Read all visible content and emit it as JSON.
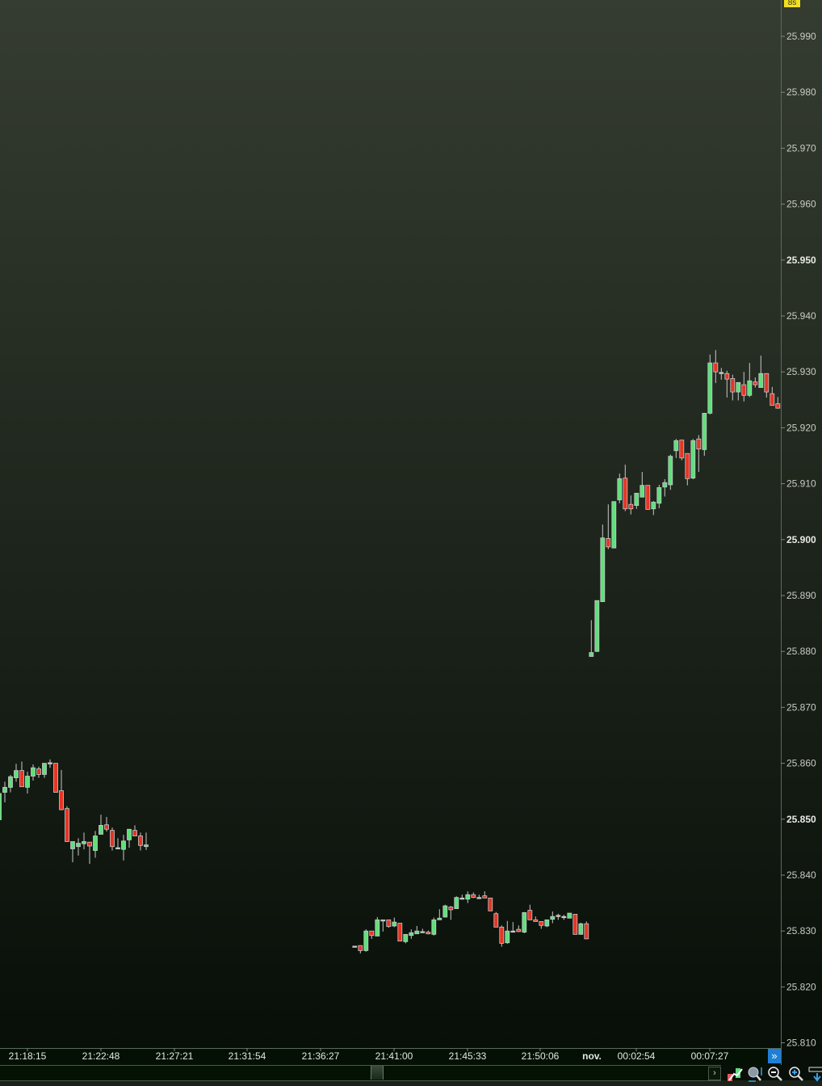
{
  "badge": "8s",
  "colors": {
    "up": "#5ee07a",
    "down": "#e43524",
    "outline": "#c8c8c8",
    "bg_top": "#353c31",
    "bg_bottom": "#070f08",
    "accent": "#1e7fd8"
  },
  "scroll_end_icon": "double-chevron-right-icon",
  "toolbar_icons": [
    "candle-bar-toggle-icon",
    "zoom-fit-icon",
    "zoom-out-icon",
    "zoom-in-icon",
    "scroll-to-end-icon"
  ],
  "chart_data": {
    "type": "candlestick",
    "ylim": [
      25.809,
      25.994
    ],
    "grid": false,
    "price_ticks": [
      "25.990",
      "25.980",
      "25.970",
      "25.960",
      "25.950",
      "25.940",
      "25.930",
      "25.920",
      "25.910",
      "25.900",
      "25.890",
      "25.880",
      "25.870",
      "25.860",
      "25.850",
      "25.840",
      "25.830",
      "25.820",
      "25.810"
    ],
    "bold_ticks": [
      "25.950",
      "25.900",
      "25.850"
    ],
    "time_ticks": [
      "21:18:15",
      "21:22:48",
      "21:27:21",
      "21:31:54",
      "21:36:27",
      "21:41:00",
      "21:45:33",
      "21:50:06",
      "nov.",
      "00:02:54",
      "00:07:27"
    ],
    "segments": [
      [
        [
          25.8499,
          25.8549,
          25.8499,
          25.8546
        ],
        [
          25.8548,
          25.8567,
          25.853,
          25.8557
        ],
        [
          25.8557,
          25.8579,
          25.8548,
          25.8576
        ],
        [
          25.8574,
          25.8599,
          25.8567,
          25.8587
        ],
        [
          25.8587,
          25.8603,
          25.8558,
          25.8558
        ],
        [
          25.8557,
          25.8585,
          25.8546,
          25.8577
        ],
        [
          25.8577,
          25.8598,
          25.8569,
          25.8592
        ],
        [
          25.859,
          25.8594,
          25.8574,
          25.858
        ],
        [
          25.858,
          25.86,
          25.8574,
          25.86
        ],
        [
          25.8601,
          25.8607,
          25.8592,
          25.8601
        ],
        [
          25.86,
          25.86,
          25.8548,
          25.8548
        ],
        [
          25.8551,
          25.8588,
          25.8516,
          25.8517
        ],
        [
          25.8519,
          25.8523,
          25.846,
          25.846
        ],
        [
          25.8447,
          25.846,
          25.8423,
          25.846
        ],
        [
          25.8451,
          25.8466,
          25.8435,
          25.8457
        ],
        [
          25.8456,
          25.8476,
          25.8446,
          25.846
        ],
        [
          25.8459,
          25.8459,
          25.842,
          25.8452
        ],
        [
          25.8444,
          25.8479,
          25.8431,
          25.847
        ],
        [
          25.8473,
          25.8508,
          25.8473,
          25.8489
        ],
        [
          25.849,
          25.8504,
          25.8478,
          25.8482
        ],
        [
          25.848,
          25.8485,
          25.8444,
          25.8451
        ],
        [
          25.8449,
          25.8466,
          25.8446,
          25.8449
        ],
        [
          25.8446,
          25.8472,
          25.8426,
          25.8461
        ],
        [
          25.8463,
          25.8482,
          25.8449,
          25.8482
        ],
        [
          25.848,
          25.8489,
          25.847,
          25.847
        ],
        [
          25.847,
          25.8476,
          25.8444,
          25.8453
        ],
        [
          25.8451,
          25.8476,
          25.8445,
          25.8454
        ]
      ],
      [
        [
          25.8273,
          25.8273,
          25.8273,
          25.8273
        ],
        [
          25.8274,
          25.8274,
          25.826,
          25.8265
        ],
        [
          25.8265,
          25.8303,
          25.8263,
          25.83
        ],
        [
          25.83,
          25.83,
          25.8286,
          25.8292
        ],
        [
          25.8291,
          25.8325,
          25.8291,
          25.832
        ],
        [
          25.832,
          25.832,
          25.8299,
          25.832
        ],
        [
          25.832,
          25.832,
          25.8306,
          25.8308
        ],
        [
          25.8309,
          25.8324,
          25.8307,
          25.8316
        ],
        [
          25.8314,
          25.8314,
          25.8282,
          25.8282
        ],
        [
          25.8281,
          25.8294,
          25.8278,
          25.8294
        ],
        [
          25.8292,
          25.8303,
          25.8286,
          25.8297
        ],
        [
          25.8295,
          25.8309,
          25.8295,
          25.83
        ],
        [
          25.8299,
          25.8304,
          25.8297,
          25.8299
        ],
        [
          25.8298,
          25.8301,
          25.8294,
          25.8295
        ],
        [
          25.8294,
          25.8324,
          25.8292,
          25.832
        ],
        [
          25.832,
          25.8339,
          25.832,
          25.8323
        ],
        [
          25.8325,
          25.8347,
          25.8324,
          25.8345
        ],
        [
          25.8343,
          25.8345,
          25.832,
          25.8338
        ],
        [
          25.834,
          25.8362,
          25.834,
          25.836
        ],
        [
          25.8359,
          25.8365,
          25.8358,
          25.8359
        ],
        [
          25.8357,
          25.8371,
          25.835,
          25.8365
        ],
        [
          25.8365,
          25.8369,
          25.8359,
          25.836
        ],
        [
          25.836,
          25.8365,
          25.8359,
          25.836
        ],
        [
          25.8363,
          25.8371,
          25.8359,
          25.8359
        ],
        [
          25.8359,
          25.8359,
          25.8336,
          25.8336
        ],
        [
          25.8331,
          25.8334,
          25.8307,
          25.8307
        ],
        [
          25.8307,
          25.831,
          25.8272,
          25.8278
        ],
        [
          25.8279,
          25.8318,
          25.8277,
          25.83
        ],
        [
          25.83,
          25.8316,
          25.8299,
          25.83
        ],
        [
          25.8303,
          25.831,
          25.8298,
          25.8299
        ],
        [
          25.8298,
          25.8334,
          25.8296,
          25.8333
        ],
        [
          25.8337,
          25.8347,
          25.832,
          25.832
        ],
        [
          25.832,
          25.8326,
          25.8317,
          25.8317
        ],
        [
          25.8317,
          25.8317,
          25.8304,
          25.831
        ],
        [
          25.8309,
          25.832,
          25.8307,
          25.832
        ],
        [
          25.8321,
          25.8335,
          25.8314,
          25.8326
        ],
        [
          25.8328,
          25.8331,
          25.832,
          25.8328
        ],
        [
          25.8326,
          25.8329,
          25.832,
          25.8326
        ],
        [
          25.8323,
          25.8332,
          25.8323,
          25.8332
        ],
        [
          25.833,
          25.833,
          25.8294,
          25.8294
        ],
        [
          25.8294,
          25.8315,
          25.8294,
          25.8313
        ],
        [
          25.8313,
          25.8317,
          25.8286,
          25.8286
        ]
      ],
      [
        [
          25.8791,
          25.8856,
          25.8791,
          25.8798
        ],
        [
          25.88,
          25.8891,
          25.8799,
          25.8891
        ],
        [
          25.8889,
          25.9027,
          25.8889,
          25.9003
        ],
        [
          25.9002,
          25.9063,
          25.8983,
          25.8987
        ],
        [
          25.8985,
          25.9068,
          25.8985,
          25.9068
        ],
        [
          25.9071,
          25.9118,
          25.9065,
          25.9109
        ],
        [
          25.911,
          25.9134,
          25.9051,
          25.9055
        ],
        [
          25.9063,
          25.9079,
          25.9045,
          25.9055
        ],
        [
          25.9061,
          25.9083,
          25.9055,
          25.9083
        ],
        [
          25.9076,
          25.9121,
          25.9076,
          25.9097
        ],
        [
          25.9097,
          25.9097,
          25.9054,
          25.9054
        ],
        [
          25.9055,
          25.9069,
          25.9044,
          25.9067
        ],
        [
          25.9065,
          25.9098,
          25.9056,
          25.9093
        ],
        [
          25.9094,
          25.9108,
          25.9077,
          25.9102
        ],
        [
          25.9098,
          25.9152,
          25.9089,
          25.9149
        ],
        [
          25.9159,
          25.918,
          25.9146,
          25.9177
        ],
        [
          25.9178,
          25.9178,
          25.9142,
          25.9146
        ],
        [
          25.9154,
          25.9154,
          25.9097,
          25.9109
        ],
        [
          25.911,
          25.918,
          25.9108,
          25.9177
        ],
        [
          25.918,
          25.9187,
          25.9121,
          25.9162
        ],
        [
          25.9161,
          25.9226,
          25.915,
          25.9226
        ],
        [
          25.9226,
          25.9331,
          25.9224,
          25.9316
        ],
        [
          25.9316,
          25.9339,
          25.928,
          25.93
        ],
        [
          25.9299,
          25.9307,
          25.9286,
          25.9299
        ],
        [
          25.9297,
          25.9302,
          25.9254,
          25.9287
        ],
        [
          25.9288,
          25.9295,
          25.9249,
          25.9264
        ],
        [
          25.9264,
          25.9281,
          25.9249,
          25.9281
        ],
        [
          25.9277,
          25.93,
          25.9247,
          25.9258
        ],
        [
          25.9258,
          25.9316,
          25.9255,
          25.9284
        ],
        [
          25.9282,
          25.929,
          25.9272,
          25.9277
        ],
        [
          25.9272,
          25.9329,
          25.9272,
          25.9297
        ],
        [
          25.9297,
          25.9297,
          25.9254,
          25.9264
        ],
        [
          25.9261,
          25.9273,
          25.924,
          25.924
        ],
        [
          25.9243,
          25.9255,
          25.9235,
          25.9235
        ]
      ]
    ]
  }
}
